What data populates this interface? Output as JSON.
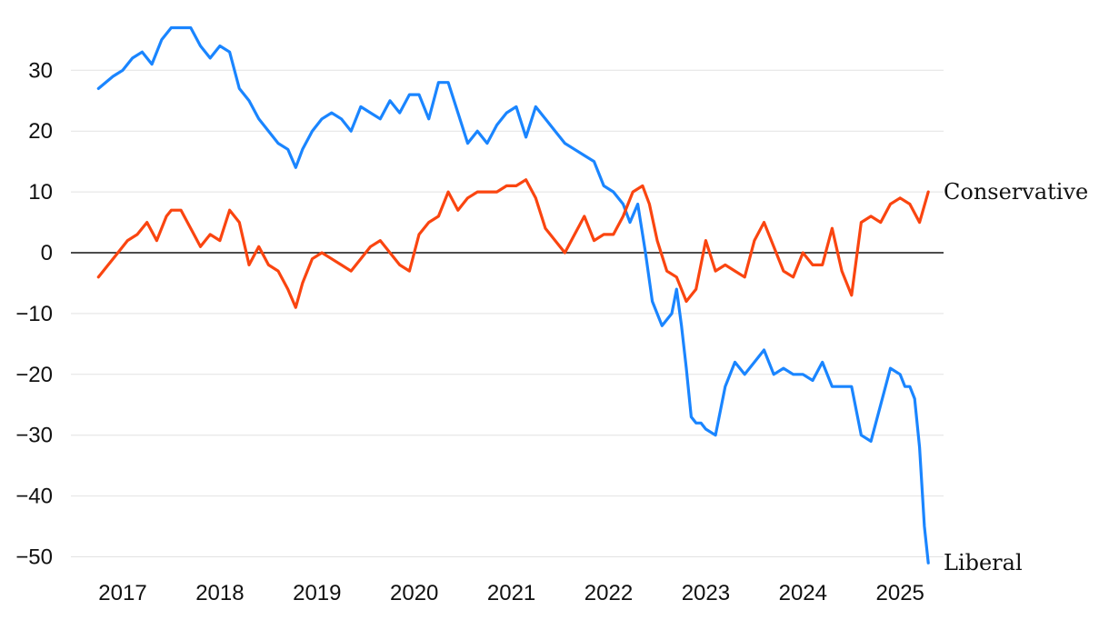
{
  "chart_data": {
    "type": "line",
    "title": "",
    "xlabel": "",
    "ylabel": "",
    "ylim": [
      -52,
      38
    ],
    "xlim": [
      2016.55,
      2025.45
    ],
    "yticks": [
      "30",
      "20",
      "10",
      "0",
      "−10",
      "−20",
      "−30",
      "−40",
      "−50"
    ],
    "ytick_values": [
      30,
      20,
      10,
      0,
      -10,
      -20,
      -30,
      -40,
      -50
    ],
    "xticks": [
      "2017",
      "2018",
      "2019",
      "2020",
      "2021",
      "2022",
      "2023",
      "2024",
      "2025"
    ],
    "xtick_values": [
      2017,
      2018,
      2019,
      2020,
      2021,
      2022,
      2023,
      2024,
      2025
    ],
    "grid": true,
    "zero_line": true,
    "series": [
      {
        "name": "Liberal",
        "color": "#1a85ff",
        "x": [
          2016.75,
          2016.9,
          2017.0,
          2017.1,
          2017.2,
          2017.3,
          2017.4,
          2017.5,
          2017.6,
          2017.7,
          2017.8,
          2017.9,
          2018.0,
          2018.1,
          2018.2,
          2018.3,
          2018.4,
          2018.5,
          2018.6,
          2018.7,
          2018.78,
          2018.85,
          2018.95,
          2019.05,
          2019.15,
          2019.25,
          2019.35,
          2019.45,
          2019.55,
          2019.65,
          2019.75,
          2019.85,
          2019.95,
          2020.05,
          2020.15,
          2020.25,
          2020.35,
          2020.45,
          2020.55,
          2020.65,
          2020.75,
          2020.85,
          2020.95,
          2021.05,
          2021.15,
          2021.25,
          2021.35,
          2021.45,
          2021.55,
          2021.65,
          2021.75,
          2021.85,
          2021.95,
          2022.05,
          2022.15,
          2022.22,
          2022.3,
          2022.38,
          2022.45,
          2022.55,
          2022.65,
          2022.7,
          2022.75,
          2022.8,
          2022.85,
          2022.9,
          2022.95,
          2023.0,
          2023.1,
          2023.2,
          2023.3,
          2023.4,
          2023.5,
          2023.6,
          2023.7,
          2023.8,
          2023.9,
          2024.0,
          2024.1,
          2024.2,
          2024.3,
          2024.4,
          2024.5,
          2024.6,
          2024.7,
          2024.8,
          2024.9,
          2025.0,
          2025.05,
          2025.1,
          2025.15,
          2025.2,
          2025.25,
          2025.29
        ],
        "values": [
          27,
          29,
          30,
          32,
          33,
          31,
          35,
          37,
          37,
          37,
          34,
          32,
          34,
          33,
          27,
          25,
          22,
          20,
          18,
          17,
          14,
          17,
          20,
          22,
          23,
          22,
          20,
          24,
          23,
          22,
          25,
          23,
          26,
          26,
          22,
          28,
          28,
          23,
          18,
          20,
          18,
          21,
          23,
          24,
          19,
          24,
          22,
          20,
          18,
          17,
          16,
          15,
          11,
          10,
          8,
          5,
          8,
          0,
          -8,
          -12,
          -10,
          -6,
          -12,
          -19,
          -27,
          -28,
          -28,
          -29,
          -30,
          -22,
          -18,
          -20,
          -18,
          -16,
          -20,
          -19,
          -20,
          -20,
          -21,
          -18,
          -22,
          -22,
          -22,
          -30,
          -31,
          -25,
          -19,
          -20,
          -22,
          -22,
          -24,
          -32,
          -45,
          -51
        ]
      },
      {
        "name": "Conservative",
        "color": "#fa4510",
        "x": [
          2016.75,
          2016.85,
          2016.95,
          2017.05,
          2017.15,
          2017.25,
          2017.35,
          2017.45,
          2017.5,
          2017.6,
          2017.7,
          2017.8,
          2017.9,
          2018.0,
          2018.1,
          2018.2,
          2018.3,
          2018.4,
          2018.5,
          2018.6,
          2018.7,
          2018.78,
          2018.85,
          2018.95,
          2019.05,
          2019.15,
          2019.25,
          2019.35,
          2019.45,
          2019.55,
          2019.65,
          2019.75,
          2019.85,
          2019.95,
          2020.05,
          2020.15,
          2020.25,
          2020.35,
          2020.45,
          2020.55,
          2020.65,
          2020.75,
          2020.85,
          2020.95,
          2021.05,
          2021.15,
          2021.25,
          2021.35,
          2021.45,
          2021.55,
          2021.65,
          2021.75,
          2021.85,
          2021.95,
          2022.05,
          2022.15,
          2022.25,
          2022.35,
          2022.42,
          2022.5,
          2022.6,
          2022.7,
          2022.8,
          2022.9,
          2023.0,
          2023.1,
          2023.2,
          2023.3,
          2023.4,
          2023.5,
          2023.6,
          2023.7,
          2023.8,
          2023.9,
          2024.0,
          2024.1,
          2024.2,
          2024.3,
          2024.4,
          2024.5,
          2024.6,
          2024.7,
          2024.8,
          2024.9,
          2025.0,
          2025.1,
          2025.2,
          2025.29
        ],
        "values": [
          -4,
          -2,
          0,
          2,
          3,
          5,
          2,
          6,
          7,
          7,
          4,
          1,
          3,
          2,
          7,
          5,
          -2,
          1,
          -2,
          -3,
          -6,
          -9,
          -5,
          -1,
          0,
          -1,
          -2,
          -3,
          -1,
          1,
          2,
          0,
          -2,
          -3,
          3,
          5,
          6,
          10,
          7,
          9,
          10,
          10,
          10,
          11,
          11,
          12,
          9,
          4,
          2,
          0,
          3,
          6,
          2,
          3,
          3,
          6,
          10,
          11,
          8,
          2,
          -3,
          -4,
          -8,
          -6,
          2,
          -3,
          -2,
          -3,
          -4,
          2,
          5,
          1,
          -3,
          -4,
          0,
          -2,
          -2,
          4,
          -3,
          -7,
          5,
          6,
          5,
          8,
          9,
          8,
          5,
          10
        ]
      }
    ],
    "series_labels": [
      {
        "text": "Conservative",
        "series": "Conservative"
      },
      {
        "text": "Liberal",
        "series": "Liberal"
      }
    ]
  }
}
